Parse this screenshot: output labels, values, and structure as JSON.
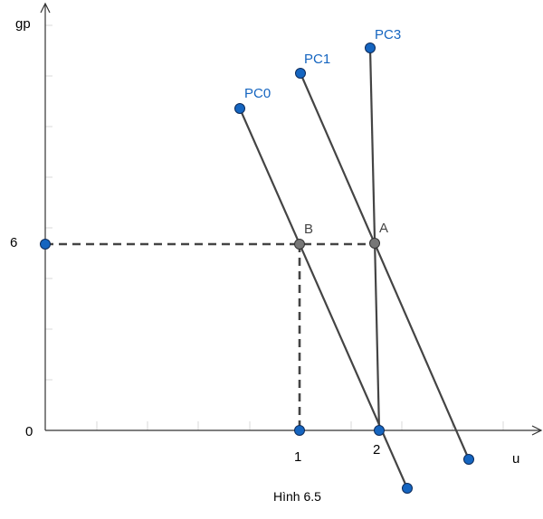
{
  "axes": {
    "y_label": "gp",
    "x_label": "u",
    "y_tick_0": "0",
    "y_tick_6": "6",
    "x_tick_1": "1",
    "x_tick_2": "2"
  },
  "curves": {
    "pc0": "PC0",
    "pc1": "PC1",
    "pc3": "PC3"
  },
  "points": {
    "a": "A",
    "b": "B"
  },
  "caption": "Hình 6.5",
  "colors": {
    "point_blue": "#1565c0",
    "point_gray": "#777777",
    "line": "#444444"
  }
}
